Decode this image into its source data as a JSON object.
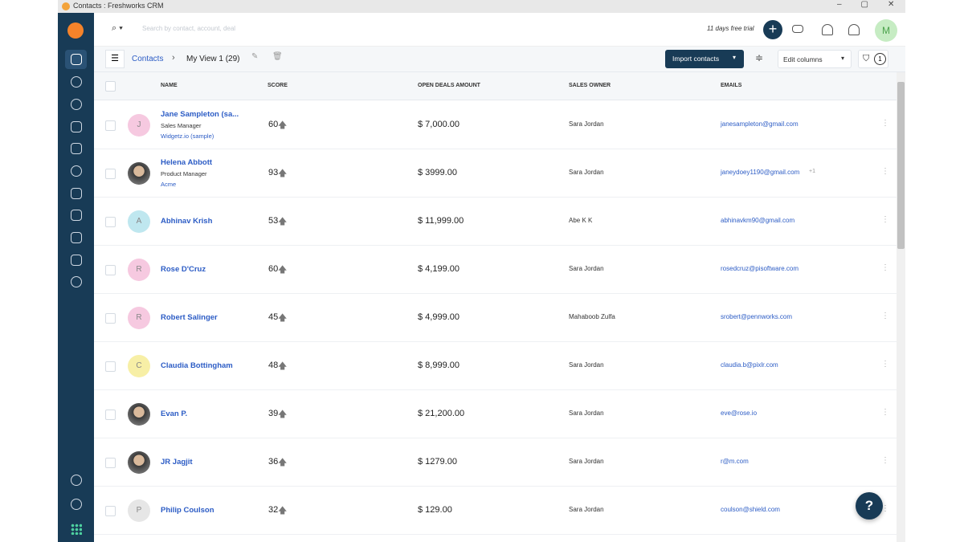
{
  "window": {
    "title": "Contacts : Freshworks CRM"
  },
  "topbar": {
    "search_placeholder": "Search by contact, account, deal",
    "trial": "11 days free trial",
    "user_initial": "M"
  },
  "toolbar": {
    "breadcrumb": "Contacts",
    "view": "My View 1 (29)",
    "import_button": "Import contacts",
    "edit_columns": "Edit columns",
    "filter_count": "1"
  },
  "table": {
    "headers": [
      "NAME",
      "SCORE",
      "OPEN DEALS AMOUNT",
      "SALES OWNER",
      "EMAILS"
    ],
    "rows": [
      {
        "name": "Jane Sampleton (sa...",
        "title": "Sales Manager",
        "company": "Widgetz.io (sample)",
        "score": 60,
        "amount": "$ 7,000.00",
        "owner": "Sara Jordan",
        "email": "janesampleton@gmail.com",
        "initial": "J",
        "avatar_color": "#f6c9e0"
      },
      {
        "name": "Helena Abbott",
        "title": "Product Manager",
        "company": "Acme",
        "score": 93,
        "amount": "$ 3999.00",
        "owner": "Sara Jordan",
        "email": "janeydoey1190@gmail.com",
        "extra": "+1"
      },
      {
        "name": "Abhinav Krish",
        "score": 53,
        "amount": "$ 11,999.00",
        "owner": "Abe K K",
        "email": "abhinavkm90@gmail.com",
        "initial": "A",
        "avatar_color": "#bfe7ef"
      },
      {
        "name": "Rose D'Cruz",
        "score": 60,
        "amount": "$ 4,199.00",
        "owner": "Sara Jordan",
        "email": "rosedcruz@pisoftware.com",
        "initial": "R",
        "avatar_color": "#f6c9e0"
      },
      {
        "name": "Robert Salinger",
        "score": 45,
        "amount": "$ 4,999.00",
        "owner": "Mahaboob Zulfa",
        "email": "srobert@pennworks.com",
        "initial": "R",
        "avatar_color": "#f6c9e0"
      },
      {
        "name": "Claudia Bottingham",
        "score": 48,
        "amount": "$ 8,999.00",
        "owner": "Sara Jordan",
        "email": "claudia.b@pixlr.com",
        "initial": "C",
        "avatar_color": "#f7efa6"
      },
      {
        "name": "Evan P.",
        "score": 39,
        "amount": "$ 21,200.00",
        "owner": "Sara Jordan",
        "email": "eve@rose.io"
      },
      {
        "name": "JR Jagjit",
        "score": 36,
        "amount": "$ 1279.00",
        "owner": "Sara Jordan",
        "email": "r@m.com"
      },
      {
        "name": "Philip Coulson",
        "score": 32,
        "amount": "$ 129.00",
        "owner": "Sara Jordan",
        "email": "coulson@shield.com",
        "initial": "P",
        "avatar_color": "#e6e6e6"
      }
    ]
  },
  "help_button": "?"
}
